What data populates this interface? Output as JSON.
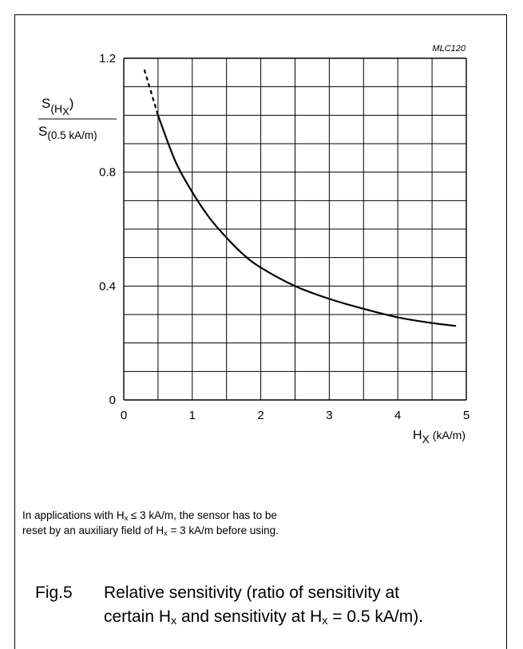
{
  "chart_data": {
    "type": "line",
    "code": "MLC120",
    "xlabel_main": "H",
    "xlabel_sub": "X",
    "xlabel_unit": " (kA/m)",
    "ylabel_num_main": "S",
    "ylabel_num_sub": "(H",
    "ylabel_num_subsub": "X",
    "ylabel_num_close": ")",
    "ylabel_den_main": "S",
    "ylabel_den_sub": "(0.5 kA/m)",
    "xlim": [
      0,
      5
    ],
    "ylim": [
      0,
      1.2
    ],
    "x_ticks": [
      "0",
      "1",
      "2",
      "3",
      "4",
      "5"
    ],
    "y_ticks": [
      "0",
      "0.4",
      "0.8",
      "1.2"
    ],
    "grid": true,
    "series": [
      {
        "line_style": "dashed",
        "x": [
          0.3,
          0.5
        ],
        "y": [
          1.16,
          1.0
        ]
      },
      {
        "line_style": "solid",
        "x": [
          0.5,
          0.75,
          1.0,
          1.25,
          1.5,
          1.75,
          2.0,
          2.5,
          3.0,
          3.5,
          4.0,
          4.5,
          4.85
        ],
        "y": [
          1.0,
          0.84,
          0.73,
          0.64,
          0.57,
          0.51,
          0.465,
          0.4,
          0.355,
          0.32,
          0.29,
          0.27,
          0.26
        ]
      }
    ]
  },
  "note": {
    "l1_a": "In applications with H",
    "l1_sub": "x",
    "l1_b": " ≤ 3 kA/m, the sensor has to be",
    "l2_a": "reset by an auxiliary field of H",
    "l2_sub": "x",
    "l2_b": " = 3 kA/m before using."
  },
  "caption": {
    "fig": "Fig.5",
    "l1": "Relative sensitivity (ratio of sensitivity at",
    "l2_a": "certain H",
    "l2_sub1": "x",
    "l2_b": " and sensitivity at H",
    "l2_sub2": "x",
    "l2_c": " = 0.5 kA/m)."
  }
}
